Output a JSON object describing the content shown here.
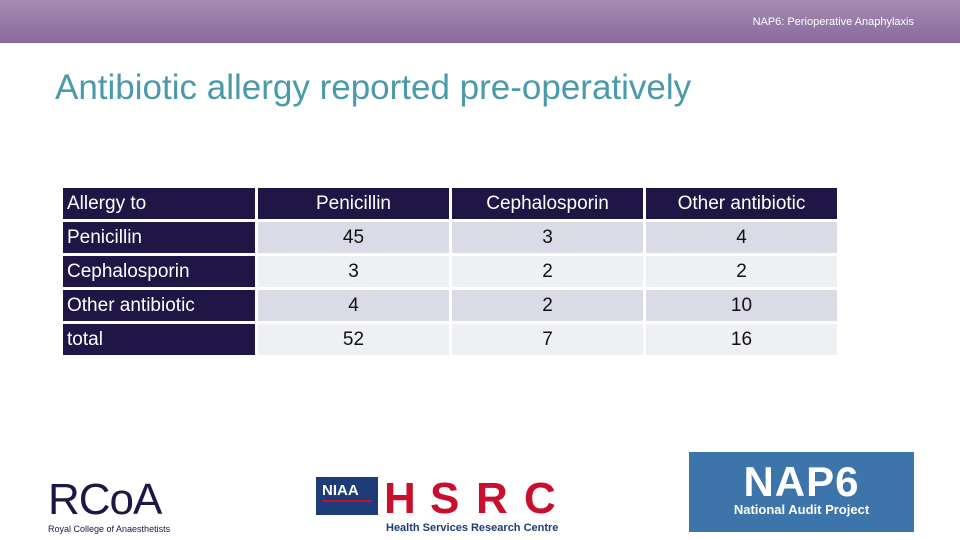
{
  "header": {
    "text": "NAP6: Perioperative Anaphylaxis"
  },
  "title": "Antibiotic allergy reported pre-operatively",
  "table": {
    "columns": [
      "Allergy to",
      "Penicillin",
      "Cephalosporin",
      "Other antibiotic"
    ],
    "rows": [
      {
        "label": "Penicillin",
        "values": [
          "45",
          "3",
          "4"
        ]
      },
      {
        "label": "Cephalosporin",
        "values": [
          "3",
          "2",
          "2"
        ]
      },
      {
        "label": "Other antibiotic",
        "values": [
          "4",
          "2",
          "10"
        ]
      },
      {
        "label": "total",
        "values": [
          "52",
          "7",
          "16"
        ]
      }
    ]
  },
  "logos": {
    "rcoa": {
      "wordmark": "RCoA",
      "subtitle": "Royal College of Anaesthetists"
    },
    "niaa": {
      "wordmark": "NIAA"
    },
    "hsrc": {
      "letters": [
        "H",
        "S",
        "R",
        "C"
      ],
      "subtitle": "Health Services Research Centre"
    },
    "nap6": {
      "wordmark": "NAP6",
      "subtitle": "National Audit Project"
    }
  },
  "colors": {
    "header_band": "#8a6a9c",
    "title": "#4a9aab",
    "table_header": "#1f1646",
    "row_odd": "#dadbe6",
    "row_even": "#eef0f4",
    "hsrc_red": "#c8102e",
    "nap6_blue": "#3d75ab"
  }
}
